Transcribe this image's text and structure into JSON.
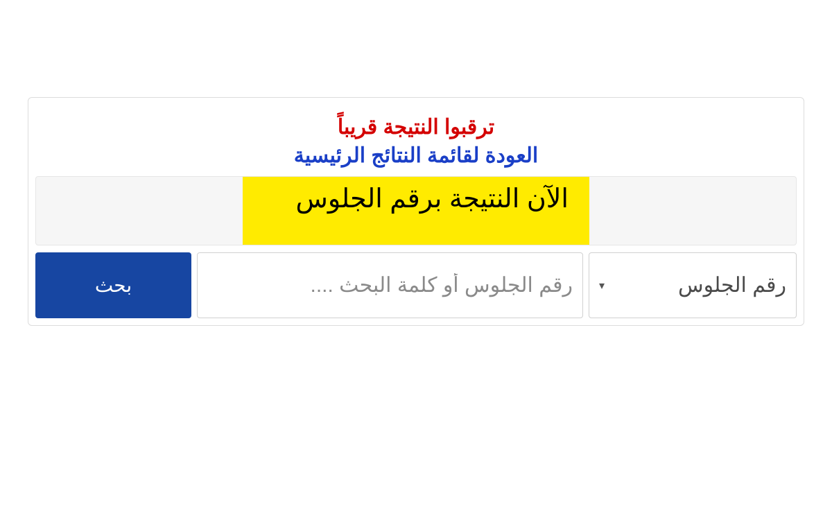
{
  "header": {
    "notice_text": "ترقبوا النتيجة قريباً",
    "notice_color": "#d40000",
    "back_link_text": "العودة لقائمة النتائج الرئيسية",
    "back_link_color": "#1a3fc7"
  },
  "highlight": {
    "text": "الآن النتيجة برقم الجلوس",
    "background_color": "#ffeb00",
    "text_color": "#000000"
  },
  "search_form": {
    "select": {
      "selected_label": "رقم الجلوس"
    },
    "input": {
      "value": "",
      "placeholder": "رقم الجلوس أو كلمة البحث ...."
    },
    "button": {
      "label": "بحث",
      "background_color": "#1746a2",
      "text_color": "#ffffff"
    }
  },
  "style": {
    "panel_border_color": "#dcdcdc",
    "input_border_color": "#d0d0d0",
    "gray_bar_background": "#f6f6f6"
  }
}
